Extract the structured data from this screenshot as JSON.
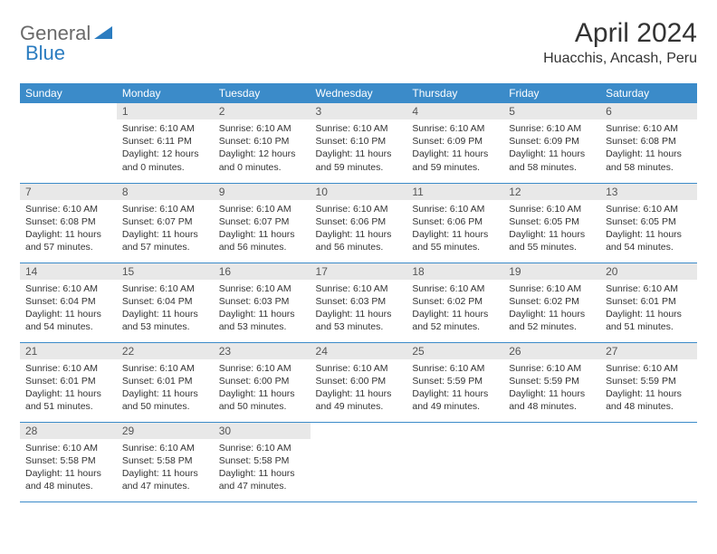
{
  "logo": {
    "text1": "General",
    "text2": "Blue"
  },
  "title": "April 2024",
  "location": "Huacchis, Ancash, Peru",
  "headers": [
    "Sunday",
    "Monday",
    "Tuesday",
    "Wednesday",
    "Thursday",
    "Friday",
    "Saturday"
  ],
  "colors": {
    "header_bg": "#3b8bc9",
    "header_text": "#ffffff",
    "daynum_bg": "#e8e8e8",
    "border": "#3b8bc9",
    "logo_gray": "#6a6a6a",
    "logo_blue": "#2b7cc0"
  },
  "weeks": [
    [
      null,
      {
        "n": "1",
        "sr": "Sunrise: 6:10 AM",
        "ss": "Sunset: 6:11 PM",
        "dl": "Daylight: 12 hours and 0 minutes."
      },
      {
        "n": "2",
        "sr": "Sunrise: 6:10 AM",
        "ss": "Sunset: 6:10 PM",
        "dl": "Daylight: 12 hours and 0 minutes."
      },
      {
        "n": "3",
        "sr": "Sunrise: 6:10 AM",
        "ss": "Sunset: 6:10 PM",
        "dl": "Daylight: 11 hours and 59 minutes."
      },
      {
        "n": "4",
        "sr": "Sunrise: 6:10 AM",
        "ss": "Sunset: 6:09 PM",
        "dl": "Daylight: 11 hours and 59 minutes."
      },
      {
        "n": "5",
        "sr": "Sunrise: 6:10 AM",
        "ss": "Sunset: 6:09 PM",
        "dl": "Daylight: 11 hours and 58 minutes."
      },
      {
        "n": "6",
        "sr": "Sunrise: 6:10 AM",
        "ss": "Sunset: 6:08 PM",
        "dl": "Daylight: 11 hours and 58 minutes."
      }
    ],
    [
      {
        "n": "7",
        "sr": "Sunrise: 6:10 AM",
        "ss": "Sunset: 6:08 PM",
        "dl": "Daylight: 11 hours and 57 minutes."
      },
      {
        "n": "8",
        "sr": "Sunrise: 6:10 AM",
        "ss": "Sunset: 6:07 PM",
        "dl": "Daylight: 11 hours and 57 minutes."
      },
      {
        "n": "9",
        "sr": "Sunrise: 6:10 AM",
        "ss": "Sunset: 6:07 PM",
        "dl": "Daylight: 11 hours and 56 minutes."
      },
      {
        "n": "10",
        "sr": "Sunrise: 6:10 AM",
        "ss": "Sunset: 6:06 PM",
        "dl": "Daylight: 11 hours and 56 minutes."
      },
      {
        "n": "11",
        "sr": "Sunrise: 6:10 AM",
        "ss": "Sunset: 6:06 PM",
        "dl": "Daylight: 11 hours and 55 minutes."
      },
      {
        "n": "12",
        "sr": "Sunrise: 6:10 AM",
        "ss": "Sunset: 6:05 PM",
        "dl": "Daylight: 11 hours and 55 minutes."
      },
      {
        "n": "13",
        "sr": "Sunrise: 6:10 AM",
        "ss": "Sunset: 6:05 PM",
        "dl": "Daylight: 11 hours and 54 minutes."
      }
    ],
    [
      {
        "n": "14",
        "sr": "Sunrise: 6:10 AM",
        "ss": "Sunset: 6:04 PM",
        "dl": "Daylight: 11 hours and 54 minutes."
      },
      {
        "n": "15",
        "sr": "Sunrise: 6:10 AM",
        "ss": "Sunset: 6:04 PM",
        "dl": "Daylight: 11 hours and 53 minutes."
      },
      {
        "n": "16",
        "sr": "Sunrise: 6:10 AM",
        "ss": "Sunset: 6:03 PM",
        "dl": "Daylight: 11 hours and 53 minutes."
      },
      {
        "n": "17",
        "sr": "Sunrise: 6:10 AM",
        "ss": "Sunset: 6:03 PM",
        "dl": "Daylight: 11 hours and 53 minutes."
      },
      {
        "n": "18",
        "sr": "Sunrise: 6:10 AM",
        "ss": "Sunset: 6:02 PM",
        "dl": "Daylight: 11 hours and 52 minutes."
      },
      {
        "n": "19",
        "sr": "Sunrise: 6:10 AM",
        "ss": "Sunset: 6:02 PM",
        "dl": "Daylight: 11 hours and 52 minutes."
      },
      {
        "n": "20",
        "sr": "Sunrise: 6:10 AM",
        "ss": "Sunset: 6:01 PM",
        "dl": "Daylight: 11 hours and 51 minutes."
      }
    ],
    [
      {
        "n": "21",
        "sr": "Sunrise: 6:10 AM",
        "ss": "Sunset: 6:01 PM",
        "dl": "Daylight: 11 hours and 51 minutes."
      },
      {
        "n": "22",
        "sr": "Sunrise: 6:10 AM",
        "ss": "Sunset: 6:01 PM",
        "dl": "Daylight: 11 hours and 50 minutes."
      },
      {
        "n": "23",
        "sr": "Sunrise: 6:10 AM",
        "ss": "Sunset: 6:00 PM",
        "dl": "Daylight: 11 hours and 50 minutes."
      },
      {
        "n": "24",
        "sr": "Sunrise: 6:10 AM",
        "ss": "Sunset: 6:00 PM",
        "dl": "Daylight: 11 hours and 49 minutes."
      },
      {
        "n": "25",
        "sr": "Sunrise: 6:10 AM",
        "ss": "Sunset: 5:59 PM",
        "dl": "Daylight: 11 hours and 49 minutes."
      },
      {
        "n": "26",
        "sr": "Sunrise: 6:10 AM",
        "ss": "Sunset: 5:59 PM",
        "dl": "Daylight: 11 hours and 48 minutes."
      },
      {
        "n": "27",
        "sr": "Sunrise: 6:10 AM",
        "ss": "Sunset: 5:59 PM",
        "dl": "Daylight: 11 hours and 48 minutes."
      }
    ],
    [
      {
        "n": "28",
        "sr": "Sunrise: 6:10 AM",
        "ss": "Sunset: 5:58 PM",
        "dl": "Daylight: 11 hours and 48 minutes."
      },
      {
        "n": "29",
        "sr": "Sunrise: 6:10 AM",
        "ss": "Sunset: 5:58 PM",
        "dl": "Daylight: 11 hours and 47 minutes."
      },
      {
        "n": "30",
        "sr": "Sunrise: 6:10 AM",
        "ss": "Sunset: 5:58 PM",
        "dl": "Daylight: 11 hours and 47 minutes."
      },
      null,
      null,
      null,
      null
    ]
  ]
}
